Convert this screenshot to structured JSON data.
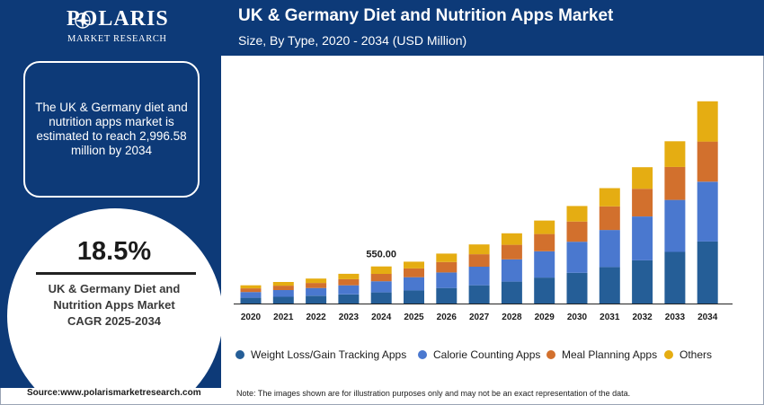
{
  "header": {
    "logo_word": "POLARIS",
    "logo_sub": "MARKET RESEARCH",
    "title": "UK & Germany Diet and Nutrition Apps Market",
    "subtitle": "Size, By Type, 2020 - 2034 (USD Million)"
  },
  "left_panel": {
    "info_text": "The UK & Germany diet and nutrition apps market is estimated to reach 2,996.58 million by 2034",
    "cagr_value": "18.5%",
    "cagr_label_line1": "UK & Germany Diet and",
    "cagr_label_line2": "Nutrition Apps Market",
    "cagr_label_line3": "CAGR 2025-2034"
  },
  "footer": {
    "source": "Source:www.polarismarketresearch.com",
    "note": "Note: The images shown are for illustration purposes only and may not be an exact representation of the data."
  },
  "colors": {
    "brand": "#0d3a78",
    "series": [
      "#255e97",
      "#4a78cf",
      "#d2702d",
      "#e5ad12"
    ]
  },
  "chart_data": {
    "type": "bar",
    "stacked": true,
    "categories": [
      "2020",
      "2021",
      "2022",
      "2023",
      "2024",
      "2025",
      "2026",
      "2027",
      "2028",
      "2029",
      "2030",
      "2031",
      "2032",
      "2033",
      "2034"
    ],
    "series": [
      {
        "name": "Weight Loss/Gain Tracking Apps",
        "values": [
          85,
          100,
          115,
          135,
          165,
          195,
          230,
          270,
          325,
          385,
          455,
          540,
          640,
          765,
          920
        ]
      },
      {
        "name": "Calorie Counting Apps",
        "values": [
          85,
          100,
          115,
          135,
          165,
          195,
          230,
          275,
          330,
          390,
          460,
          550,
          650,
          770,
          885
        ]
      },
      {
        "name": "Meal Planning Apps",
        "values": [
          55,
          65,
          75,
          90,
          110,
          130,
          155,
          185,
          215,
          255,
          300,
          350,
          410,
          490,
          595
        ]
      },
      {
        "name": "Others",
        "values": [
          45,
          55,
          65,
          80,
          110,
          100,
          125,
          145,
          170,
          200,
          230,
          270,
          320,
          380,
          597
        ]
      }
    ],
    "annotations": [
      {
        "category": "2024",
        "text": "550.00"
      }
    ],
    "ylim": [
      0,
      3300
    ],
    "grid": false,
    "legend_position": "bottom",
    "xlabel": "",
    "ylabel": ""
  }
}
